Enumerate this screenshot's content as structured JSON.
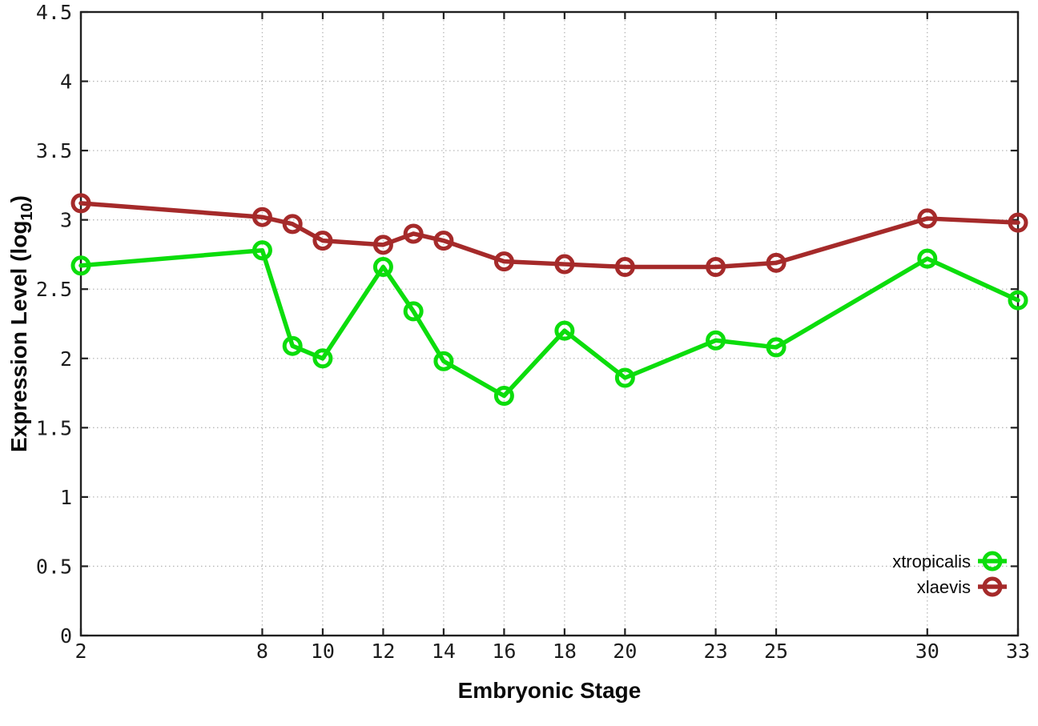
{
  "chart": {
    "background_color": "#ffffff",
    "border_color": "#202020",
    "grid_color": "#b8b8b8",
    "tick_label_color": "#1c1c1c",
    "marker_style": "open-circle"
  },
  "chart_data": {
    "type": "line",
    "title": "",
    "xlabel": "Embryonic Stage",
    "ylabel": "Expression Level (log10)",
    "ylabel_parts": {
      "prefix": "Expression Level (log",
      "sub": "10",
      "suffix": ")"
    },
    "xlim": [
      2,
      33
    ],
    "ylim": [
      0,
      4.5
    ],
    "xtick_values": [
      2,
      8,
      10,
      12,
      14,
      16,
      18,
      20,
      23,
      25,
      30,
      33
    ],
    "xtick_labels": [
      "2",
      "8",
      "10",
      "12",
      "14",
      "16",
      "18",
      "20",
      "23",
      "25",
      "30",
      "33"
    ],
    "ytick_values": [
      0,
      0.5,
      1,
      1.5,
      2,
      2.5,
      3,
      3.5,
      4,
      4.5
    ],
    "ytick_labels": [
      "0",
      "0.5",
      "1",
      "1.5",
      "2",
      "2.5",
      "3",
      "3.5",
      "4",
      "4.5"
    ],
    "grid": true,
    "legend_position": "bottom-right",
    "x": [
      2,
      8,
      9,
      10,
      12,
      13,
      14,
      16,
      18,
      20,
      23,
      25,
      30,
      33
    ],
    "series": [
      {
        "name": "xtropicalis",
        "color": "#0cdd0c",
        "values": [
          2.67,
          2.78,
          2.09,
          2.0,
          2.66,
          2.34,
          1.98,
          1.73,
          2.2,
          1.86,
          2.13,
          2.08,
          2.72,
          2.42
        ]
      },
      {
        "name": "xlaevis",
        "color": "#a52a2a",
        "values": [
          3.12,
          3.02,
          2.97,
          2.85,
          2.82,
          2.9,
          2.85,
          2.7,
          2.68,
          2.66,
          2.66,
          2.69,
          3.01,
          2.98
        ]
      }
    ]
  }
}
